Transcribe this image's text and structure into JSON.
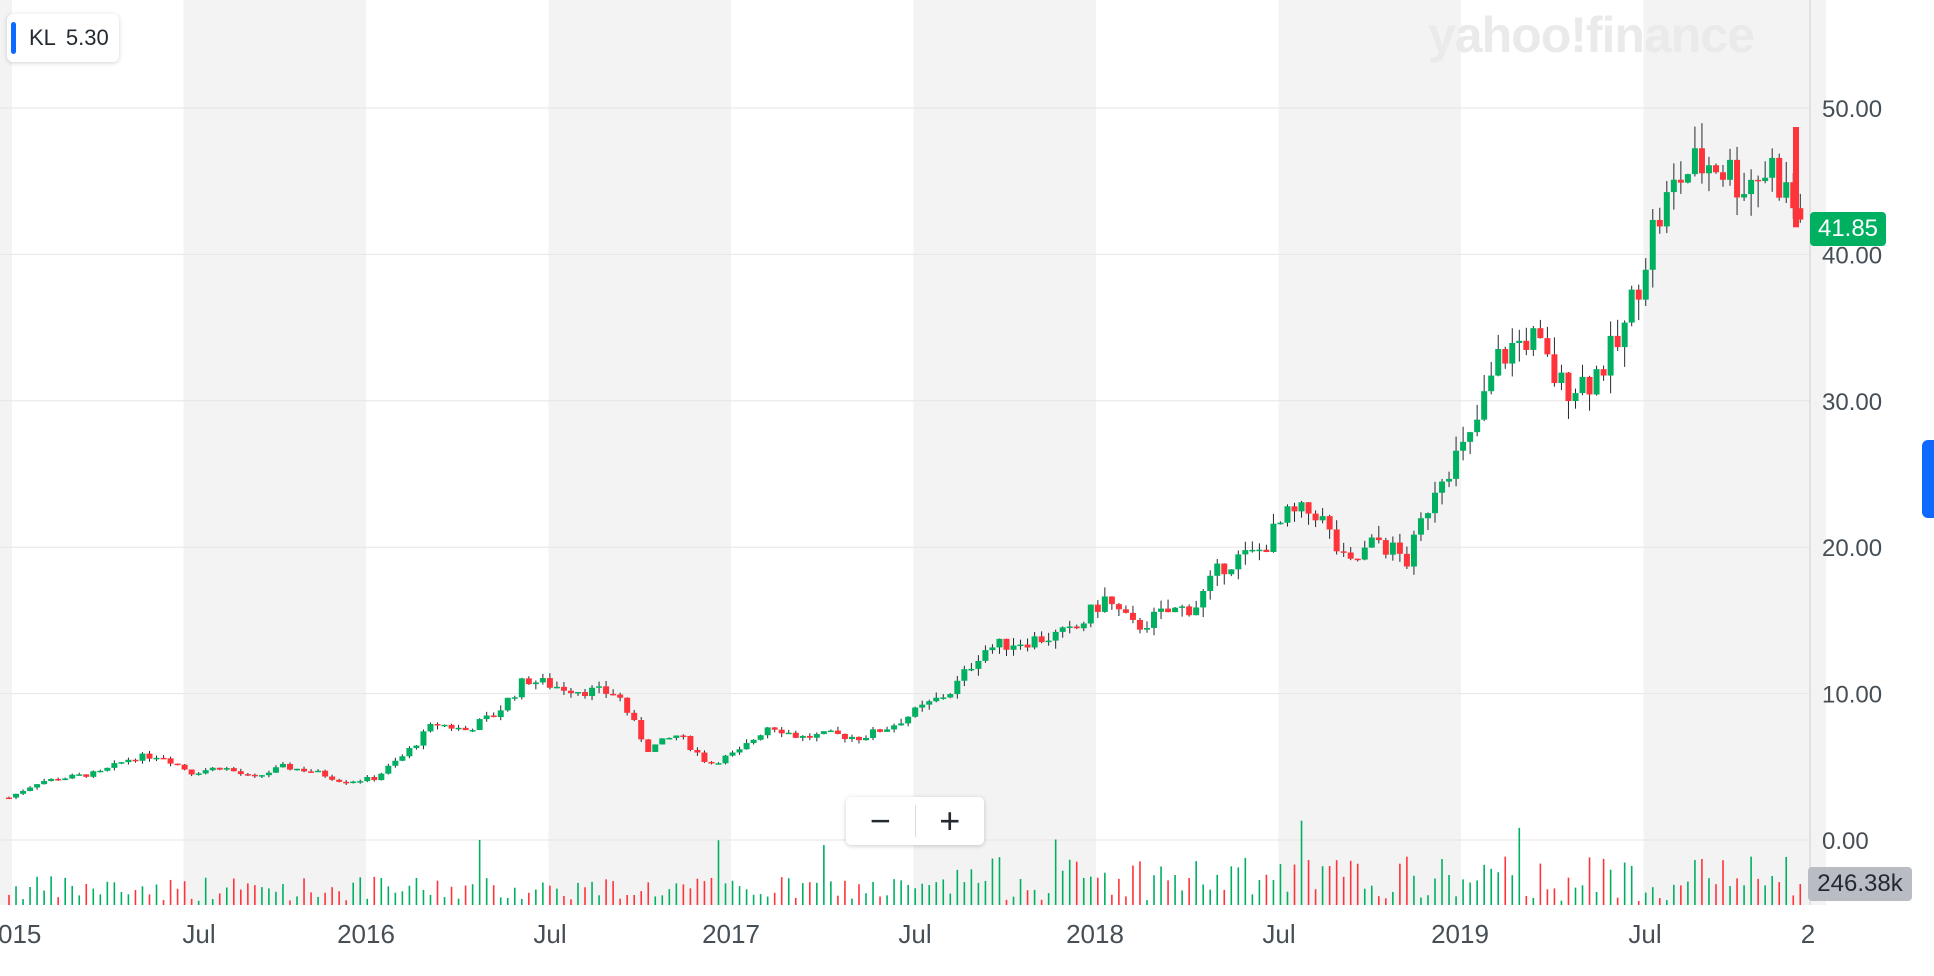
{
  "ticker": {
    "symbol": "KL",
    "value": "5.30"
  },
  "logo_text": "yahoo!finance",
  "last_price_label": "41.85",
  "volume_label": "246.38k",
  "zoom": {
    "out_label": "−",
    "in_label": "+"
  },
  "colors": {
    "up": "#00b061",
    "down": "#ff333a",
    "accent": "#0f69ff",
    "band": "#f3f3f3"
  },
  "chart_data": {
    "type": "candlestick",
    "y_ticks": [
      "0.00",
      "10.00",
      "20.00",
      "30.00",
      "40.00",
      "50.00"
    ],
    "ylim": [
      0,
      50
    ],
    "x_ticks": [
      "015",
      "Jul",
      "2016",
      "Jul",
      "2017",
      "Jul",
      "2018",
      "Jul",
      "2019",
      "Jul",
      "2"
    ],
    "x_range": [
      "2015-01",
      "2020-01"
    ],
    "grid": true,
    "last_price": 41.85,
    "last_volume": "246.38k",
    "series": [
      {
        "name": "KL",
        "points": [
          {
            "date": "2015-01",
            "value": 2.9
          },
          {
            "date": "2015-02",
            "value": 4.0
          },
          {
            "date": "2015-03",
            "value": 4.3
          },
          {
            "date": "2015-04",
            "value": 4.6
          },
          {
            "date": "2015-05",
            "value": 5.6
          },
          {
            "date": "2015-06",
            "value": 5.8
          },
          {
            "date": "2015-07",
            "value": 4.6
          },
          {
            "date": "2015-08",
            "value": 5.0
          },
          {
            "date": "2015-09",
            "value": 4.2
          },
          {
            "date": "2015-10",
            "value": 5.0
          },
          {
            "date": "2015-11",
            "value": 4.7
          },
          {
            "date": "2015-12",
            "value": 4.0
          },
          {
            "date": "2016-01",
            "value": 4.2
          },
          {
            "date": "2016-02",
            "value": 5.8
          },
          {
            "date": "2016-03",
            "value": 8.0
          },
          {
            "date": "2016-04",
            "value": 7.5
          },
          {
            "date": "2016-05",
            "value": 8.6
          },
          {
            "date": "2016-06",
            "value": 11.0
          },
          {
            "date": "2016-07",
            "value": 10.5
          },
          {
            "date": "2016-08",
            "value": 10.2
          },
          {
            "date": "2016-09",
            "value": 10.0
          },
          {
            "date": "2016-10",
            "value": 6.2
          },
          {
            "date": "2016-11",
            "value": 7.2
          },
          {
            "date": "2016-12",
            "value": 5.2
          },
          {
            "date": "2017-01",
            "value": 6.0
          },
          {
            "date": "2017-02",
            "value": 7.9
          },
          {
            "date": "2017-03",
            "value": 7.0
          },
          {
            "date": "2017-04",
            "value": 7.2
          },
          {
            "date": "2017-05",
            "value": 7.0
          },
          {
            "date": "2017-06",
            "value": 7.8
          },
          {
            "date": "2017-07",
            "value": 9.0
          },
          {
            "date": "2017-08",
            "value": 10.2
          },
          {
            "date": "2017-09",
            "value": 13.0
          },
          {
            "date": "2017-10",
            "value": 13.5
          },
          {
            "date": "2017-11",
            "value": 13.8
          },
          {
            "date": "2017-12",
            "value": 14.2
          },
          {
            "date": "2018-01",
            "value": 16.5
          },
          {
            "date": "2018-02",
            "value": 14.5
          },
          {
            "date": "2018-03",
            "value": 15.5
          },
          {
            "date": "2018-04",
            "value": 16.0
          },
          {
            "date": "2018-05",
            "value": 19.0
          },
          {
            "date": "2018-06",
            "value": 19.5
          },
          {
            "date": "2018-07",
            "value": 22.0
          },
          {
            "date": "2018-08",
            "value": 22.5
          },
          {
            "date": "2018-09",
            "value": 18.5
          },
          {
            "date": "2018-10",
            "value": 20.5
          },
          {
            "date": "2018-11",
            "value": 19.0
          },
          {
            "date": "2018-12",
            "value": 25.0
          },
          {
            "date": "2019-01",
            "value": 27.0
          },
          {
            "date": "2019-02",
            "value": 33.0
          },
          {
            "date": "2019-03",
            "value": 34.5
          },
          {
            "date": "2019-04",
            "value": 31.0
          },
          {
            "date": "2019-05",
            "value": 31.5
          },
          {
            "date": "2019-06",
            "value": 34.0
          },
          {
            "date": "2019-07",
            "value": 41.5
          },
          {
            "date": "2019-08",
            "value": 45.5
          },
          {
            "date": "2019-09",
            "value": 46.5
          },
          {
            "date": "2019-10",
            "value": 45.0
          },
          {
            "date": "2019-11",
            "value": 46.0
          },
          {
            "date": "2019-12",
            "value": 41.85
          }
        ]
      }
    ]
  }
}
